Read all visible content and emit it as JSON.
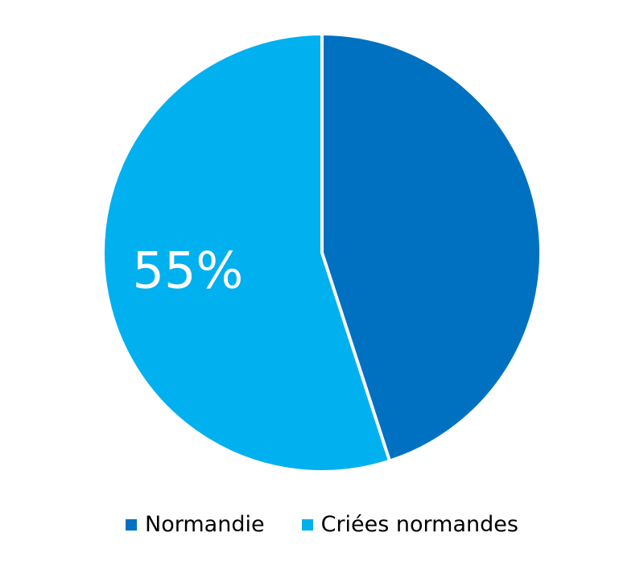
{
  "chart_data": {
    "type": "pie",
    "title": "",
    "series": [
      {
        "name": "",
        "categories": [
          "Normandie",
          "Criées normandes"
        ],
        "values": [
          45,
          55
        ],
        "unit": "%"
      }
    ],
    "data_labels": [
      "",
      "55%"
    ],
    "colors": [
      "#0071c1",
      "#00b0ef"
    ],
    "legend": {
      "position": "bottom",
      "items": [
        "Normandie",
        "Criées normandes"
      ]
    },
    "start_angle_deg": 0,
    "direction": "clockwise",
    "slice_separator_color": "#ffffff"
  }
}
